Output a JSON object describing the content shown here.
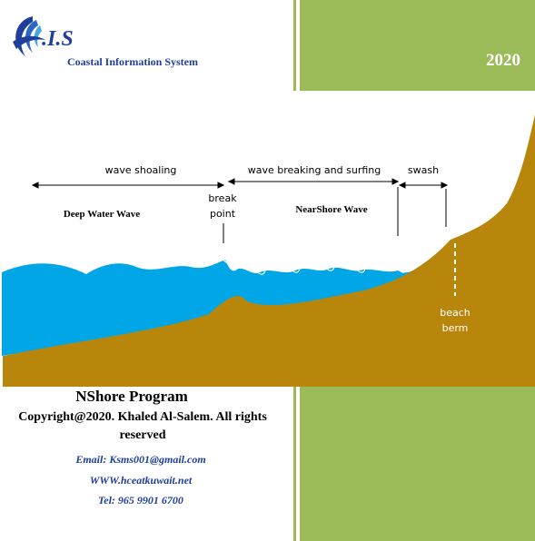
{
  "header": {
    "logo_letters": ".I.S",
    "system_name": "Coastal Information System",
    "year": "2020"
  },
  "diagram": {
    "zone_labels": {
      "wave_shoaling": "wave shoaling",
      "wave_breaking": "wave breaking and surfing",
      "swash": "swash"
    },
    "deep_water": "Deep Water Wave",
    "break_point_line1": "break",
    "break_point_line2": "point",
    "nearshore": "NearShore Wave",
    "beach_berm_line1": "beach",
    "beach_berm_line2": "berm"
  },
  "footer": {
    "program_title": "NShore Program",
    "copyright_line1": "Copyright@2020. Khaled Al-Salem. All rights",
    "copyright_line2": "reserved",
    "email": "Email: Ksms001@gmail.com",
    "website": "WWW.hceatkuwait.net",
    "phone": "Tel: 965 9901 6700"
  },
  "colors": {
    "accent_green": "#9bbb59",
    "water_blue": "#00a6e6",
    "sand_brown": "#b8860b",
    "text_blue": "#1f3f9a"
  }
}
